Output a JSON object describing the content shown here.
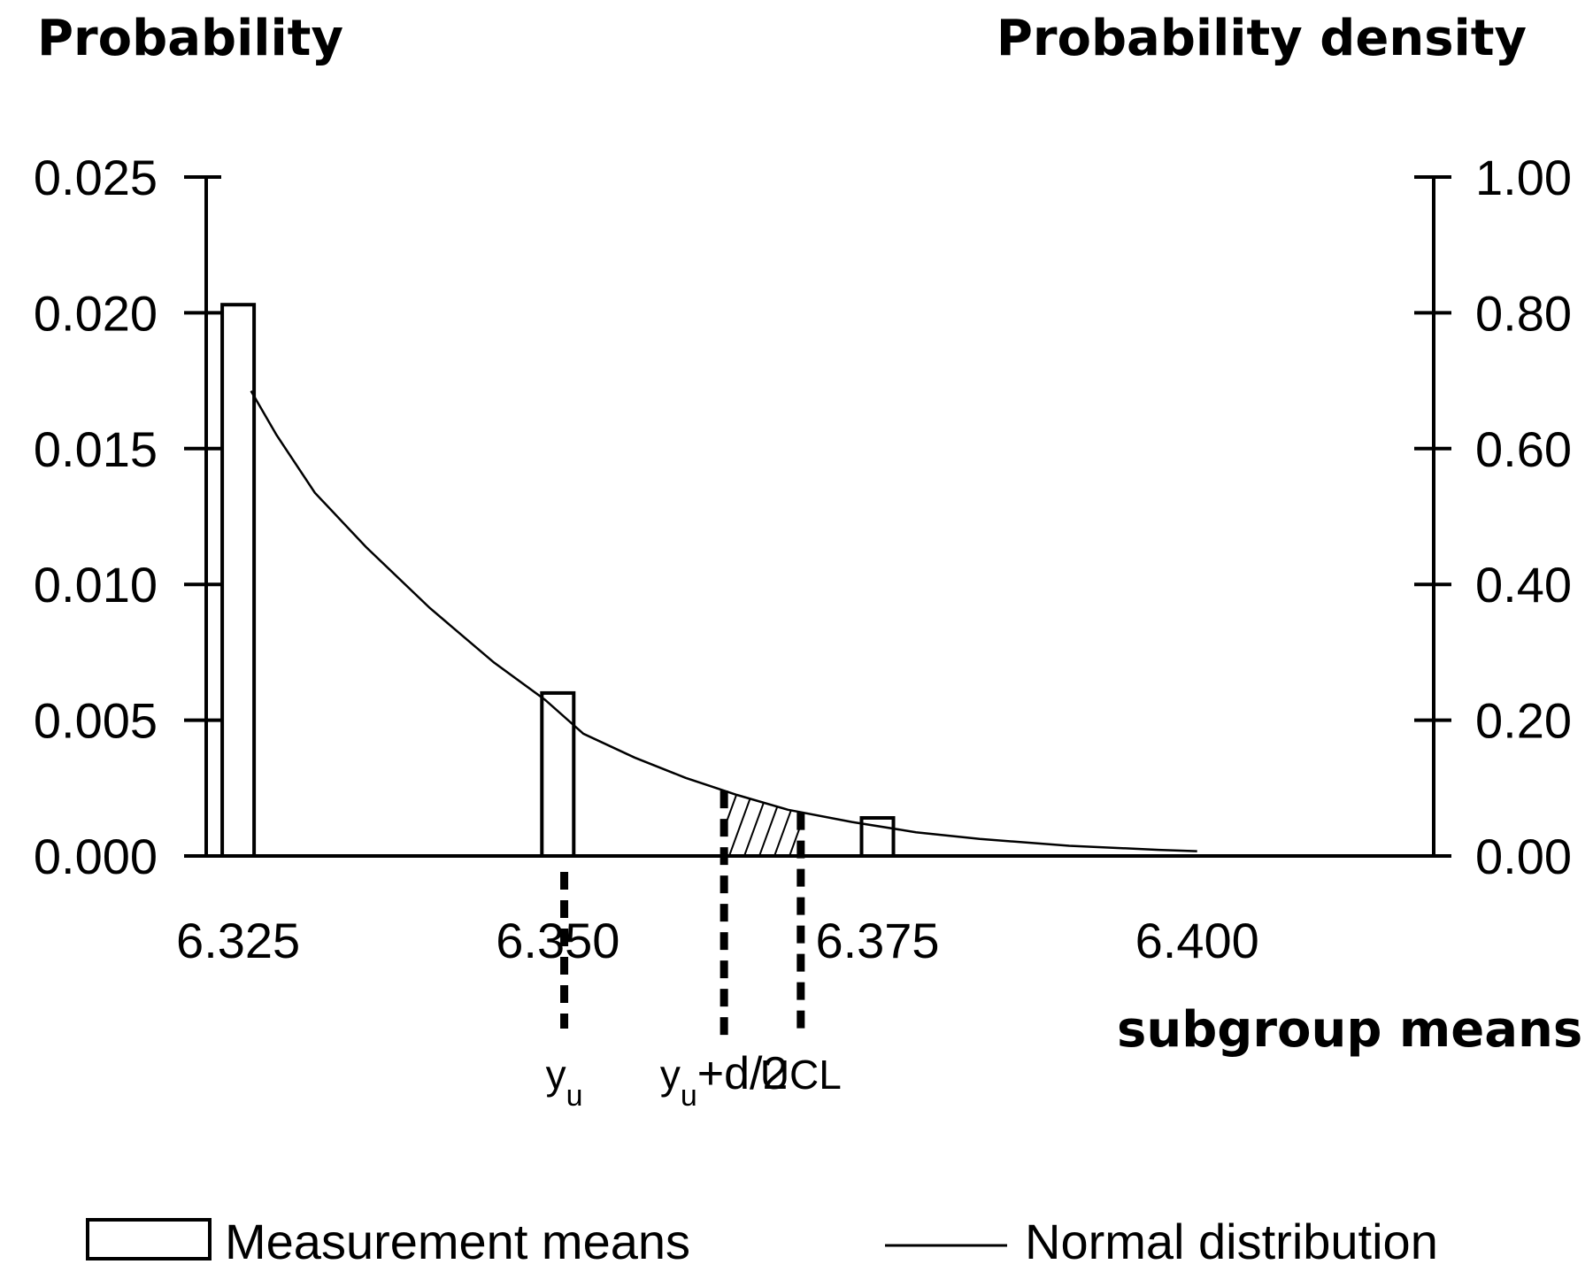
{
  "chart_data": {
    "type": "bar",
    "left_axis_title": "Probability",
    "right_axis_title": "Probability density",
    "xlabel": "subgroup means",
    "x_range": [
      6.3225,
      6.4185
    ],
    "x_ticks": [
      "6.325",
      "6.350",
      "6.375",
      "6.400"
    ],
    "x_tick_values": [
      6.325,
      6.35,
      6.375,
      6.4
    ],
    "left_ylim": [
      0,
      0.025
    ],
    "left_y_ticks": [
      "0.025",
      "0.020",
      "0.015",
      "0.010",
      "0.005",
      "0.000"
    ],
    "left_y_tick_values": [
      0.025,
      0.02,
      0.015,
      0.01,
      0.005,
      0.0
    ],
    "right_ylim": [
      0,
      1.0
    ],
    "right_y_ticks": [
      "1.00",
      "0.80",
      "0.60",
      "0.40",
      "0.20",
      "0.00"
    ],
    "right_y_tick_values": [
      1.0,
      0.8,
      0.6,
      0.4,
      0.2,
      0.0
    ],
    "grid": false,
    "legend_position": "bottom",
    "series": [
      {
        "name": "Measurement means",
        "kind": "bar",
        "axis": "left",
        "x": [
          6.325,
          6.35,
          6.375
        ],
        "values": [
          0.0203,
          0.006,
          0.0014
        ]
      },
      {
        "name": "Normal distribution",
        "kind": "line",
        "axis": "right",
        "x": [
          6.326,
          6.328,
          6.331,
          6.335,
          6.34,
          6.345,
          6.349,
          6.352,
          6.356,
          6.36,
          6.364,
          6.368,
          6.373,
          6.378,
          6.383,
          6.39,
          6.397,
          6.4
        ],
        "values": [
          0.685,
          0.62,
          0.535,
          0.455,
          0.365,
          0.285,
          0.23,
          0.18,
          0.145,
          0.115,
          0.09,
          0.068,
          0.05,
          0.035,
          0.025,
          0.015,
          0.009,
          0.007
        ]
      }
    ],
    "markers": [
      {
        "label_main": "y",
        "label_sub": "u",
        "label_suffix": "",
        "x": 6.3505
      },
      {
        "label_main": "y",
        "label_sub": "u",
        "label_suffix": "+d/2",
        "x": 6.363
      },
      {
        "label_main": "UCL",
        "label_sub": "",
        "label_suffix": "",
        "x": 6.369
      }
    ],
    "shaded_region": {
      "x_start": 6.363,
      "x_end": 6.369
    }
  }
}
